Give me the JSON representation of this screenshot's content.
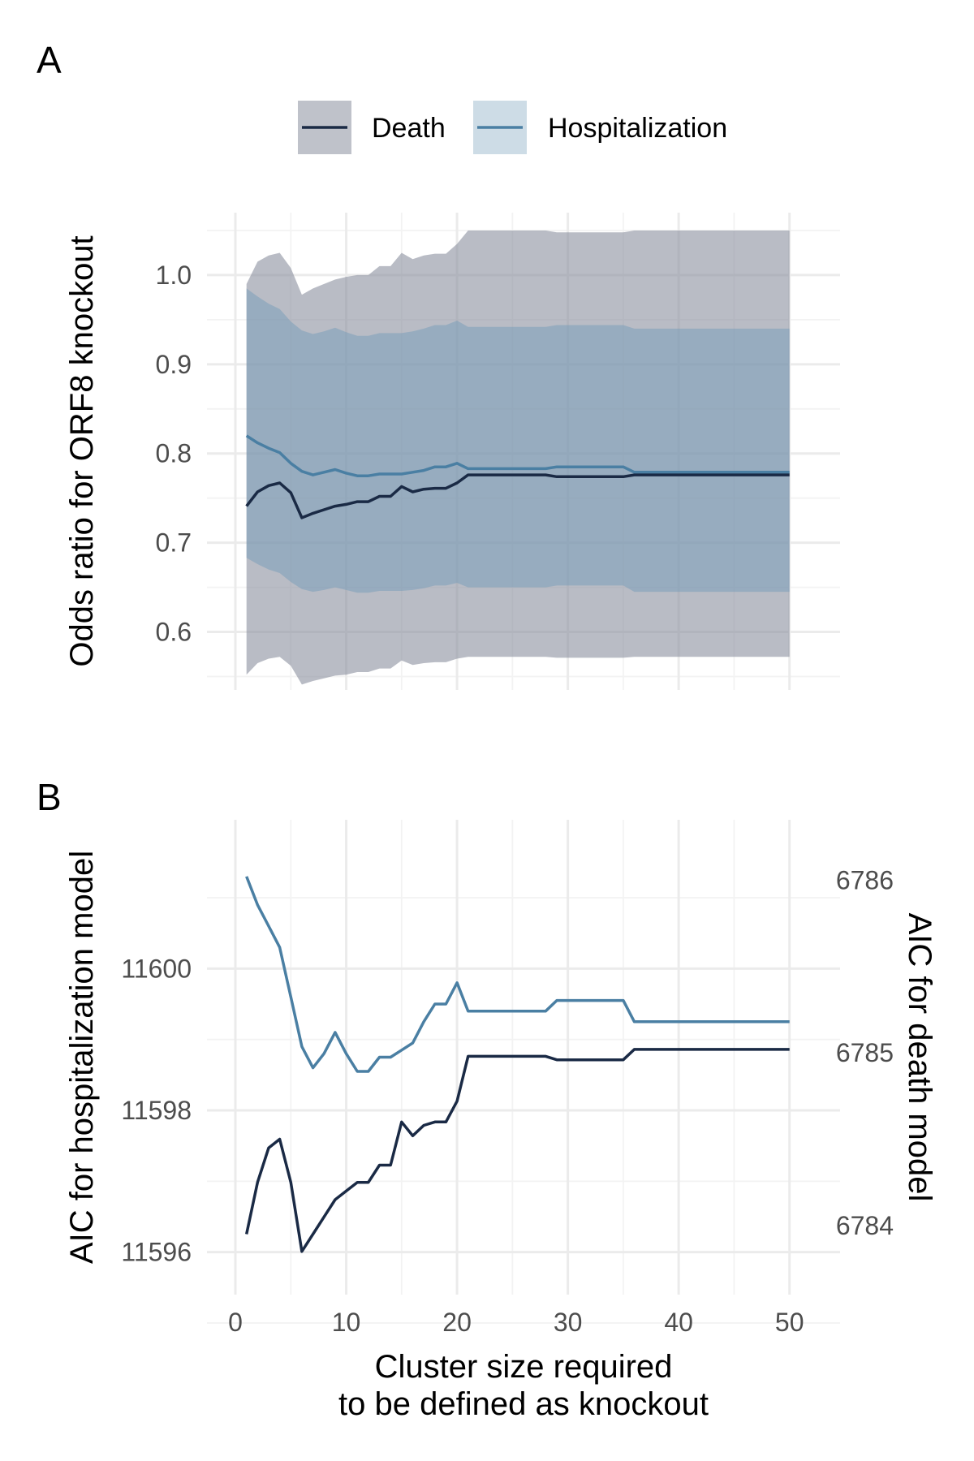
{
  "panels": {
    "a_label": "A",
    "b_label": "B"
  },
  "colors": {
    "death": "#1a2a45",
    "hospitalization": "#4a7fa3",
    "death_ribbon": "#8a8f9e",
    "hosp_ribbon": "#6f9ab8"
  },
  "legend": {
    "items": [
      {
        "label": "Death",
        "key": "death"
      },
      {
        "label": "Hospitalization",
        "key": "hospitalization"
      }
    ]
  },
  "chart_data": [
    {
      "type": "line",
      "panel": "A",
      "ylabel": "Odds ratio for ORF8 knockout",
      "xlim": [
        0,
        52
      ],
      "ylim": [
        0.535,
        1.07
      ],
      "yticks": [
        0.6,
        0.7,
        0.8,
        0.9,
        1.0
      ],
      "ytick_labels": [
        "0.6",
        "0.7",
        "0.8",
        "0.9",
        "1.0"
      ],
      "xticks": [
        0,
        10,
        20,
        30,
        40,
        50
      ],
      "show_x_tick_labels": false,
      "grid": true,
      "legend_position": "top",
      "series": [
        {
          "name": "Death",
          "key": "death",
          "x": [
            1,
            2,
            3,
            4,
            5,
            6,
            7,
            8,
            9,
            10,
            11,
            12,
            13,
            14,
            15,
            16,
            17,
            18,
            19,
            20,
            21,
            28,
            29,
            35,
            36,
            50
          ],
          "y": [
            0.741,
            0.757,
            0.764,
            0.767,
            0.756,
            0.728,
            0.733,
            0.737,
            0.741,
            0.743,
            0.746,
            0.746,
            0.752,
            0.752,
            0.763,
            0.757,
            0.76,
            0.761,
            0.761,
            0.767,
            0.776,
            0.776,
            0.774,
            0.774,
            0.776,
            0.776
          ],
          "lower": [
            0.552,
            0.565,
            0.57,
            0.572,
            0.562,
            0.541,
            0.545,
            0.548,
            0.551,
            0.552,
            0.555,
            0.555,
            0.559,
            0.559,
            0.568,
            0.563,
            0.565,
            0.566,
            0.566,
            0.57,
            0.572,
            0.572,
            0.571,
            0.571,
            0.572,
            0.572
          ],
          "upper": [
            0.99,
            1.015,
            1.022,
            1.025,
            1.008,
            0.978,
            0.985,
            0.99,
            0.995,
            0.998,
            1.0,
            1.0,
            1.01,
            1.01,
            1.025,
            1.018,
            1.022,
            1.024,
            1.024,
            1.035,
            1.05,
            1.05,
            1.048,
            1.048,
            1.05,
            1.05
          ]
        },
        {
          "name": "Hospitalization",
          "key": "hospitalization",
          "x": [
            1,
            2,
            3,
            4,
            5,
            6,
            7,
            8,
            9,
            10,
            11,
            12,
            13,
            14,
            15,
            16,
            17,
            18,
            19,
            20,
            21,
            28,
            29,
            35,
            36,
            50
          ],
          "y": [
            0.82,
            0.812,
            0.806,
            0.801,
            0.789,
            0.78,
            0.776,
            0.779,
            0.782,
            0.778,
            0.775,
            0.775,
            0.777,
            0.777,
            0.777,
            0.779,
            0.781,
            0.785,
            0.785,
            0.789,
            0.783,
            0.783,
            0.785,
            0.785,
            0.779,
            0.779
          ],
          "lower": [
            0.683,
            0.676,
            0.67,
            0.666,
            0.656,
            0.648,
            0.645,
            0.647,
            0.65,
            0.647,
            0.644,
            0.644,
            0.646,
            0.646,
            0.646,
            0.647,
            0.649,
            0.652,
            0.652,
            0.655,
            0.65,
            0.65,
            0.652,
            0.652,
            0.645,
            0.645
          ],
          "upper": [
            0.985,
            0.976,
            0.968,
            0.962,
            0.948,
            0.938,
            0.934,
            0.937,
            0.941,
            0.936,
            0.932,
            0.932,
            0.935,
            0.935,
            0.935,
            0.937,
            0.94,
            0.944,
            0.944,
            0.949,
            0.942,
            0.942,
            0.944,
            0.944,
            0.94,
            0.94
          ]
        }
      ]
    },
    {
      "type": "line",
      "panel": "B",
      "xlabel": "Cluster size required\nto be defined as knockout",
      "ylabel": "AIC for hospitalization model",
      "ylabel_right": "AIC for death model",
      "xlim": [
        0,
        52
      ],
      "ylim": [
        11595.4,
        11602.1
      ],
      "ylim_right": [
        6783.6,
        6786.35
      ],
      "xticks": [
        0,
        10,
        20,
        30,
        40,
        50
      ],
      "xtick_labels": [
        "0",
        "10",
        "20",
        "30",
        "40",
        "50"
      ],
      "yticks": [
        11596,
        11598,
        11600
      ],
      "ytick_labels": [
        "11596",
        "11598",
        "11600"
      ],
      "yticks_right": [
        6784,
        6785,
        6786
      ],
      "ytick_labels_right": [
        "6784",
        "6785",
        "6786"
      ],
      "grid": true,
      "series": [
        {
          "name": "Hospitalization",
          "key": "hospitalization",
          "axis": "left",
          "x": [
            1,
            2,
            3,
            4,
            5,
            6,
            7,
            8,
            9,
            10,
            11,
            12,
            13,
            14,
            15,
            16,
            17,
            18,
            19,
            20,
            21,
            28,
            29,
            35,
            36,
            50
          ],
          "y": [
            11601.3,
            11600.9,
            11600.6,
            11600.3,
            11599.6,
            11598.9,
            11598.6,
            11598.8,
            11599.1,
            11598.8,
            11598.55,
            11598.55,
            11598.75,
            11598.75,
            11598.85,
            11598.95,
            11599.25,
            11599.5,
            11599.5,
            11599.8,
            11599.4,
            11599.4,
            11599.55,
            11599.55,
            11599.25,
            11599.25
          ]
        },
        {
          "name": "Death",
          "key": "death",
          "axis": "right",
          "x": [
            1,
            2,
            3,
            4,
            5,
            6,
            7,
            8,
            9,
            10,
            11,
            12,
            13,
            14,
            15,
            16,
            17,
            18,
            19,
            20,
            21,
            28,
            29,
            35,
            36,
            50
          ],
          "y": [
            6783.95,
            6784.25,
            6784.45,
            6784.5,
            6784.25,
            6783.85,
            6783.95,
            6784.05,
            6784.15,
            6784.2,
            6784.25,
            6784.25,
            6784.35,
            6784.35,
            6784.6,
            6784.52,
            6784.58,
            6784.6,
            6784.6,
            6784.72,
            6784.98,
            6784.98,
            6784.96,
            6784.96,
            6785.02,
            6785.02
          ]
        }
      ]
    }
  ]
}
